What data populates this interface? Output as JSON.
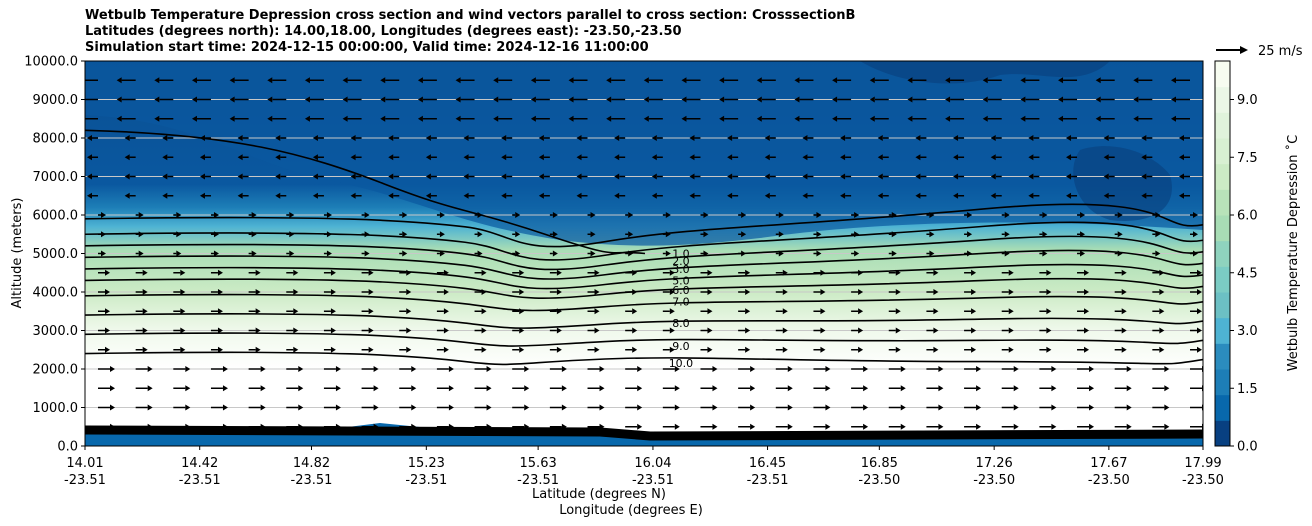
{
  "chart_data": {
    "type": "heatmap",
    "title_lines": [
      "Wetbulb Temperature Depression cross section and wind vectors parallel to cross section: CrosssectionB",
      "Latitudes (degrees north): 14.00,18.00, Longitudes (degrees east): -23.50,-23.50",
      "Simulation start time: 2024-12-15 00:00:00, Valid time: 2024-12-16 11:00:00"
    ],
    "ylabel": "Altitude (meters)",
    "xlabel_lines": [
      "Latitude (degrees N)",
      "Longitude (degrees E)"
    ],
    "ylim": [
      0,
      10000
    ],
    "y_ticks": [
      "0.0",
      "1000.0",
      "2000.0",
      "3000.0",
      "4000.0",
      "5000.0",
      "6000.0",
      "7000.0",
      "8000.0",
      "9000.0",
      "10000.0"
    ],
    "x_ticks": [
      {
        "lat": "14.01",
        "lon": "-23.51",
        "frac": 0.0
      },
      {
        "lat": "14.42",
        "lon": "-23.51",
        "frac": 0.1026
      },
      {
        "lat": "14.82",
        "lon": "-23.51",
        "frac": 0.2026
      },
      {
        "lat": "15.23",
        "lon": "-23.51",
        "frac": 0.3053
      },
      {
        "lat": "15.63",
        "lon": "-23.51",
        "frac": 0.4053
      },
      {
        "lat": "16.04",
        "lon": "-23.51",
        "frac": 0.508
      },
      {
        "lat": "16.45",
        "lon": "-23.51",
        "frac": 0.6105
      },
      {
        "lat": "16.85",
        "lon": "-23.50",
        "frac": 0.7105
      },
      {
        "lat": "17.26",
        "lon": "-23.50",
        "frac": 0.8132
      },
      {
        "lat": "17.67",
        "lon": "-23.50",
        "frac": 0.9158
      },
      {
        "lat": "17.99",
        "lon": "-23.50",
        "frac": 1.0
      }
    ],
    "colorbar": {
      "label": "Wetbulb Temperature Depression $^\\circ$C",
      "label_display": "Wetbulb Temperature Depression ˚C",
      "range": [
        0,
        10
      ],
      "ticks": [
        "0.0",
        "1.5",
        "3.0",
        "4.5",
        "6.0",
        "7.5",
        "9.0"
      ],
      "colors": [
        "#084081",
        "#0868ac",
        "#1d7eb7",
        "#2b8cbe",
        "#4eb3d3",
        "#6cc0c4",
        "#7bccc4",
        "#8fd3be",
        "#a8ddb5",
        "#b8e3b9",
        "#ccebc5",
        "#d8f0d2",
        "#e0f3db",
        "#ebf7e6",
        "#f7fcf0"
      ]
    },
    "contour_labels": [
      {
        "text": "1.0",
        "alt": 5000
      },
      {
        "text": "2.0",
        "alt": 4800
      },
      {
        "text": "3.0",
        "alt": 4600
      },
      {
        "text": "5.0",
        "alt": 4300
      },
      {
        "text": "6.0",
        "alt": 4050
      },
      {
        "text": "7.0",
        "alt": 3750
      },
      {
        "text": "8.0",
        "alt": 3200
      },
      {
        "text": "9.0",
        "alt": 2600
      },
      {
        "text": "10.0",
        "alt": 2150
      }
    ],
    "wind_reference": {
      "label": "25 m/s"
    },
    "grid": true
  }
}
